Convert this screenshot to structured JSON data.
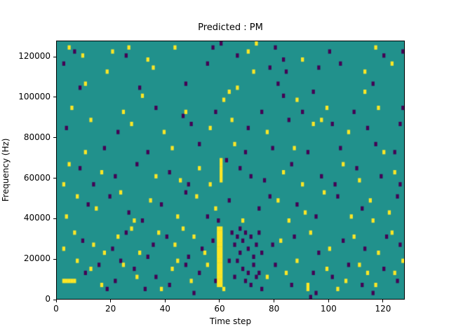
{
  "title": "Predicted : PM",
  "chart_data": {
    "type": "heatmap",
    "title": "Predicted : PM",
    "xlabel": "Time step",
    "ylabel": "Frequency (Hz)",
    "xlim": [
      0,
      128
    ],
    "ylim": [
      0,
      128000
    ],
    "x_ticks": [
      0,
      20,
      40,
      60,
      80,
      100,
      120
    ],
    "y_ticks": [
      0,
      20000,
      40000,
      60000,
      80000,
      100000,
      120000
    ],
    "grid": false,
    "legend": "none",
    "n_time": 128,
    "n_freq_bins": 64,
    "freq_bin_hz": 2000,
    "colors": {
      "background": "#21918c",
      "high": "#fde725",
      "low": "#440154",
      "axes": "#000000",
      "figure_bg": "#ffffff"
    },
    "yellow_runs": [
      {
        "t0": 59,
        "t1": 60,
        "f0": 3,
        "f1": 17
      },
      {
        "t0": 60,
        "t1": 60,
        "f0": 29,
        "f1": 34
      },
      {
        "t0": 2,
        "t1": 6,
        "f0": 4,
        "f1": 4
      }
    ],
    "yellow_cells": [
      [
        4,
        62
      ],
      [
        9,
        60
      ],
      [
        20,
        61
      ],
      [
        26,
        62
      ],
      [
        33,
        59
      ],
      [
        43,
        62
      ],
      [
        70,
        61
      ],
      [
        73,
        63
      ],
      [
        90,
        59
      ],
      [
        117,
        62
      ],
      [
        113,
        56
      ],
      [
        123,
        58
      ],
      [
        72,
        56
      ],
      [
        35,
        57
      ],
      [
        18,
        56
      ],
      [
        10,
        53
      ],
      [
        31,
        50
      ],
      [
        63,
        51
      ],
      [
        66,
        52
      ],
      [
        61,
        49
      ],
      [
        88,
        49
      ],
      [
        99,
        47
      ],
      [
        113,
        51
      ],
      [
        118,
        47
      ],
      [
        24,
        46
      ],
      [
        5,
        47
      ],
      [
        47,
        46
      ],
      [
        12,
        44
      ],
      [
        27,
        43
      ],
      [
        39,
        41
      ],
      [
        56,
        42
      ],
      [
        64,
        44
      ],
      [
        77,
        41
      ],
      [
        94,
        43
      ],
      [
        97,
        44
      ],
      [
        107,
        41
      ],
      [
        10,
        36
      ],
      [
        87,
        37
      ],
      [
        120,
        36
      ],
      [
        65,
        38
      ],
      [
        42,
        37
      ],
      [
        4,
        33
      ],
      [
        16,
        31
      ],
      [
        36,
        30
      ],
      [
        45,
        29
      ],
      [
        52,
        32
      ],
      [
        83,
        31
      ],
      [
        90,
        28
      ],
      [
        105,
        33
      ],
      [
        111,
        29
      ],
      [
        2,
        28
      ],
      [
        124,
        31
      ],
      [
        56,
        28
      ],
      [
        7,
        25
      ],
      [
        14,
        22
      ],
      [
        23,
        26
      ],
      [
        34,
        24
      ],
      [
        44,
        20
      ],
      [
        51,
        25
      ],
      [
        58,
        22
      ],
      [
        81,
        24
      ],
      [
        91,
        21
      ],
      [
        98,
        26
      ],
      [
        108,
        20
      ],
      [
        115,
        24
      ],
      [
        122,
        21
      ],
      [
        3,
        20
      ],
      [
        28,
        19
      ],
      [
        68,
        19
      ],
      [
        85,
        19
      ],
      [
        116,
        19
      ],
      [
        6,
        16
      ],
      [
        13,
        13
      ],
      [
        22,
        15
      ],
      [
        30,
        11
      ],
      [
        37,
        16
      ],
      [
        43,
        13
      ],
      [
        50,
        15
      ],
      [
        54,
        11
      ],
      [
        82,
        14
      ],
      [
        93,
        16
      ],
      [
        100,
        12
      ],
      [
        109,
        15
      ],
      [
        118,
        11
      ],
      [
        123,
        16
      ],
      [
        2,
        12
      ],
      [
        17,
        11
      ],
      [
        27,
        17
      ],
      [
        46,
        17
      ],
      [
        12,
        7
      ],
      [
        16,
        3
      ],
      [
        24,
        8
      ],
      [
        29,
        5
      ],
      [
        38,
        2
      ],
      [
        42,
        7
      ],
      [
        49,
        4
      ],
      [
        55,
        8
      ],
      [
        84,
        6
      ],
      [
        92,
        2
      ],
      [
        92,
        3
      ],
      [
        99,
        7
      ],
      [
        106,
        4
      ],
      [
        111,
        8
      ],
      [
        117,
        3
      ],
      [
        124,
        6
      ],
      [
        7,
        9
      ],
      [
        44,
        9
      ],
      [
        61,
        2
      ],
      [
        77,
        5
      ],
      [
        88,
        9
      ],
      [
        103,
        2
      ],
      [
        114,
        6
      ],
      [
        127,
        9
      ]
    ],
    "purple_cells": [
      [
        6,
        61
      ],
      [
        25,
        60
      ],
      [
        57,
        62
      ],
      [
        60,
        63
      ],
      [
        66,
        60
      ],
      [
        80,
        62
      ],
      [
        83,
        59
      ],
      [
        100,
        61
      ],
      [
        120,
        60
      ],
      [
        127,
        61
      ],
      [
        2,
        58
      ],
      [
        55,
        58
      ],
      [
        78,
        57
      ],
      [
        84,
        56
      ],
      [
        96,
        57
      ],
      [
        104,
        58
      ],
      [
        8,
        52
      ],
      [
        30,
        52
      ],
      [
        47,
        53
      ],
      [
        81,
        53
      ],
      [
        83,
        50
      ],
      [
        94,
        51
      ],
      [
        116,
        53
      ],
      [
        36,
        47
      ],
      [
        46,
        45
      ],
      [
        58,
        46
      ],
      [
        75,
        46
      ],
      [
        90,
        46
      ],
      [
        109,
        46
      ],
      [
        127,
        47
      ],
      [
        3,
        42
      ],
      [
        22,
        41
      ],
      [
        49,
        43
      ],
      [
        70,
        42
      ],
      [
        85,
        44
      ],
      [
        101,
        43
      ],
      [
        114,
        42
      ],
      [
        126,
        43
      ],
      [
        17,
        37
      ],
      [
        33,
        36
      ],
      [
        52,
        38
      ],
      [
        69,
        36
      ],
      [
        79,
        37
      ],
      [
        92,
        36
      ],
      [
        104,
        37
      ],
      [
        117,
        38
      ],
      [
        124,
        36
      ],
      [
        8,
        32
      ],
      [
        21,
        30
      ],
      [
        29,
        33
      ],
      [
        41,
        31
      ],
      [
        48,
        28
      ],
      [
        67,
        32
      ],
      [
        71,
        30
      ],
      [
        76,
        29
      ],
      [
        86,
        33
      ],
      [
        97,
        30
      ],
      [
        102,
        28
      ],
      [
        110,
        32
      ],
      [
        119,
        30
      ],
      [
        126,
        28
      ],
      [
        62,
        34
      ],
      [
        13,
        28
      ],
      [
        11,
        23
      ],
      [
        19,
        25
      ],
      [
        26,
        21
      ],
      [
        38,
        23
      ],
      [
        47,
        26
      ],
      [
        55,
        20
      ],
      [
        63,
        24
      ],
      [
        74,
        22
      ],
      [
        78,
        25
      ],
      [
        88,
        23
      ],
      [
        95,
        20
      ],
      [
        103,
        25
      ],
      [
        112,
        22
      ],
      [
        125,
        25
      ],
      [
        31,
        19
      ],
      [
        59,
        19
      ],
      [
        64,
        16
      ],
      [
        65,
        13
      ],
      [
        66,
        15
      ],
      [
        67,
        11
      ],
      [
        68,
        14
      ],
      [
        69,
        16
      ],
      [
        70,
        12
      ],
      [
        71,
        15
      ],
      [
        72,
        10
      ],
      [
        73,
        13
      ],
      [
        74,
        16
      ],
      [
        75,
        11
      ],
      [
        66,
        9
      ],
      [
        68,
        7
      ],
      [
        70,
        6
      ],
      [
        72,
        8
      ],
      [
        65,
        5
      ],
      [
        69,
        4
      ],
      [
        71,
        3
      ],
      [
        74,
        6
      ],
      [
        67,
        17
      ],
      [
        73,
        5
      ],
      [
        9,
        14
      ],
      [
        20,
        12
      ],
      [
        25,
        16
      ],
      [
        35,
        13
      ],
      [
        40,
        15
      ],
      [
        48,
        10
      ],
      [
        57,
        14
      ],
      [
        79,
        13
      ],
      [
        87,
        15
      ],
      [
        96,
        11
      ],
      [
        105,
        14
      ],
      [
        113,
        12
      ],
      [
        121,
        15
      ],
      [
        126,
        13
      ],
      [
        33,
        10
      ],
      [
        53,
        12
      ],
      [
        10,
        6
      ],
      [
        15,
        8
      ],
      [
        21,
        4
      ],
      [
        28,
        7
      ],
      [
        36,
        5
      ],
      [
        41,
        3
      ],
      [
        47,
        8
      ],
      [
        52,
        6
      ],
      [
        58,
        4
      ],
      [
        80,
        8
      ],
      [
        86,
        3
      ],
      [
        94,
        6
      ],
      [
        101,
        5
      ],
      [
        107,
        8
      ],
      [
        112,
        3
      ],
      [
        120,
        7
      ],
      [
        125,
        4
      ],
      [
        18,
        2
      ],
      [
        32,
        2
      ],
      [
        50,
        1
      ],
      [
        75,
        2
      ],
      [
        95,
        1
      ],
      [
        116,
        1
      ],
      [
        23,
        9
      ],
      [
        63,
        9
      ],
      [
        93,
        0
      ]
    ]
  }
}
